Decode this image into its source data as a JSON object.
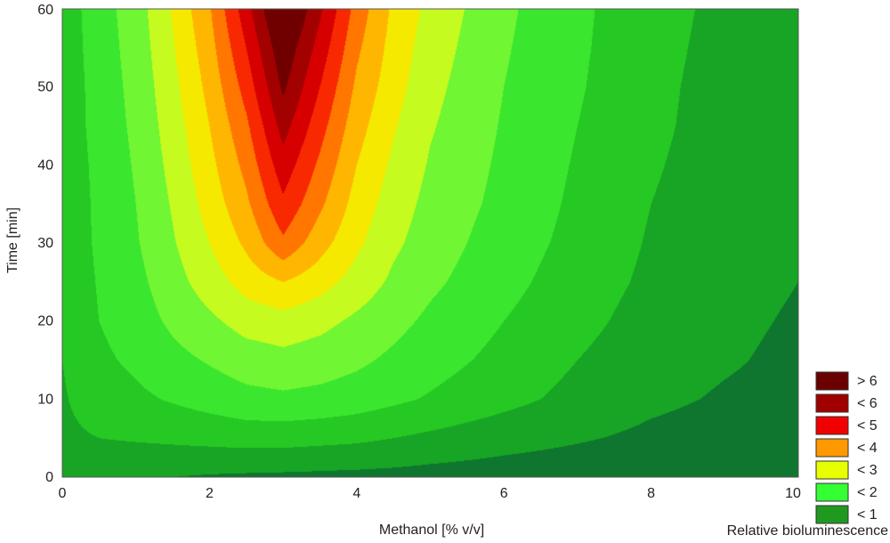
{
  "chart_data": {
    "type": "heatmap",
    "subtype": "filled-contour",
    "xlabel": "Methanol [% v/v]",
    "ylabel": "Time [min]",
    "xlim": [
      0,
      10
    ],
    "ylim": [
      0,
      60
    ],
    "x_ticks": [
      "0",
      "2",
      "4",
      "6",
      "8",
      "10"
    ],
    "y_ticks": [
      "0",
      "10",
      "20",
      "30",
      "40",
      "50",
      "60"
    ],
    "grid": false,
    "legend_title": "Relative bioluminescence",
    "legend_position": "bottom-right",
    "legend": [
      {
        "label": "> 6",
        "color": "#6b0000"
      },
      {
        "label": "< 6",
        "color": "#a00000"
      },
      {
        "label": "< 5",
        "color": "#f00000"
      },
      {
        "label": "< 4",
        "color": "#ff9900"
      },
      {
        "label": "< 3",
        "color": "#e8ff00"
      },
      {
        "label": "< 2",
        "color": "#33ff33"
      },
      {
        "label": "< 1",
        "color": "#1f9a1f"
      }
    ],
    "colormap": {
      "min_value": 0,
      "max_value": 6.5,
      "stops": [
        {
          "value": 0.0,
          "color": "#0a5a32"
        },
        {
          "value": 0.5,
          "color": "#11912a"
        },
        {
          "value": 1.0,
          "color": "#1fb81f"
        },
        {
          "value": 1.6,
          "color": "#30e02c"
        },
        {
          "value": 2.1,
          "color": "#56f533"
        },
        {
          "value": 2.6,
          "color": "#aef830"
        },
        {
          "value": 3.0,
          "color": "#eaff00"
        },
        {
          "value": 3.5,
          "color": "#ffd200"
        },
        {
          "value": 4.0,
          "color": "#ff9a00"
        },
        {
          "value": 4.5,
          "color": "#ff5200"
        },
        {
          "value": 5.0,
          "color": "#f00000"
        },
        {
          "value": 5.6,
          "color": "#b40000"
        },
        {
          "value": 6.2,
          "color": "#700000"
        }
      ]
    },
    "grid_x": [
      0,
      0.5,
      1,
      1.5,
      2,
      2.5,
      3,
      3.5,
      4,
      4.5,
      5,
      6,
      7,
      8,
      9,
      10
    ],
    "grid_y": [
      0,
      5,
      10,
      15,
      20,
      25,
      30,
      35,
      40,
      45,
      50,
      55,
      60
    ],
    "z": [
      [
        0.7,
        0.6,
        0.55,
        0.5,
        0.45,
        0.42,
        0.4,
        0.38,
        0.36,
        0.34,
        0.3,
        0.25,
        0.2,
        0.15,
        0.1,
        0.05
      ],
      [
        0.9,
        1.0,
        1.05,
        1.1,
        1.15,
        1.2,
        1.2,
        1.15,
        1.1,
        1.0,
        0.9,
        0.7,
        0.55,
        0.4,
        0.3,
        0.2
      ],
      [
        0.95,
        1.25,
        1.4,
        1.55,
        1.7,
        1.85,
        1.9,
        1.85,
        1.75,
        1.6,
        1.45,
        1.15,
        0.85,
        0.6,
        0.45,
        0.35
      ],
      [
        1.0,
        1.4,
        1.6,
        1.85,
        2.05,
        2.25,
        2.35,
        2.25,
        2.1,
        1.9,
        1.7,
        1.35,
        1.0,
        0.7,
        0.55,
        0.4
      ],
      [
        1.05,
        1.5,
        1.75,
        2.1,
        2.4,
        2.7,
        2.8,
        2.65,
        2.4,
        2.15,
        1.9,
        1.5,
        1.15,
        0.8,
        0.6,
        0.45
      ],
      [
        1.05,
        1.55,
        1.85,
        2.3,
        2.75,
        3.2,
        3.5,
        3.2,
        2.8,
        2.4,
        2.1,
        1.65,
        1.25,
        0.9,
        0.65,
        0.5
      ],
      [
        1.1,
        1.6,
        1.95,
        2.45,
        3.0,
        3.6,
        4.4,
        3.7,
        3.1,
        2.6,
        2.25,
        1.75,
        1.35,
        0.95,
        0.7,
        0.55
      ],
      [
        1.1,
        1.62,
        2.0,
        2.55,
        3.2,
        3.9,
        4.9,
        4.1,
        3.3,
        2.75,
        2.35,
        1.85,
        1.4,
        1.0,
        0.75,
        0.6
      ],
      [
        1.12,
        1.65,
        2.05,
        2.65,
        3.35,
        4.15,
        5.3,
        4.4,
        3.5,
        2.9,
        2.45,
        1.9,
        1.45,
        1.05,
        0.78,
        0.62
      ],
      [
        1.15,
        1.7,
        2.1,
        2.75,
        3.5,
        4.4,
        5.7,
        4.7,
        3.7,
        3.05,
        2.55,
        1.95,
        1.5,
        1.1,
        0.8,
        0.65
      ],
      [
        1.15,
        1.72,
        2.15,
        2.85,
        3.65,
        4.7,
        6.1,
        5.0,
        3.9,
        3.2,
        2.65,
        2.0,
        1.55,
        1.12,
        0.82,
        0.66
      ],
      [
        1.18,
        1.75,
        2.2,
        2.95,
        3.8,
        5.0,
        6.4,
        5.3,
        4.1,
        3.3,
        2.75,
        2.05,
        1.58,
        1.15,
        0.85,
        0.68
      ],
      [
        1.2,
        1.78,
        2.25,
        3.05,
        3.95,
        5.3,
        6.8,
        5.6,
        4.3,
        3.4,
        2.85,
        2.1,
        1.6,
        1.18,
        0.88,
        0.7
      ]
    ]
  }
}
